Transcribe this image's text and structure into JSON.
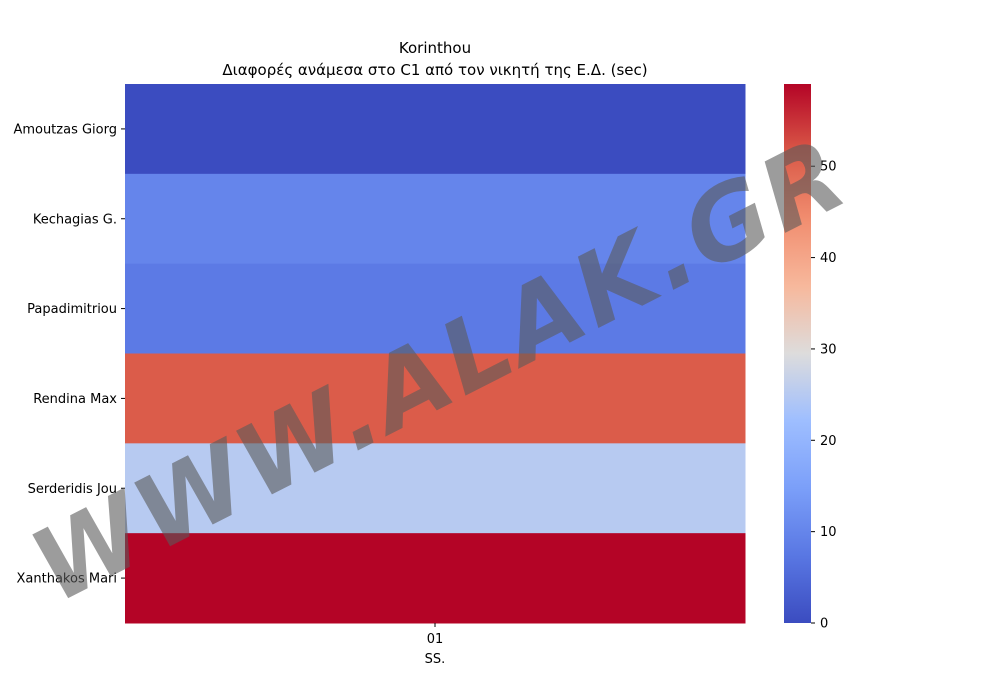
{
  "chart_data": {
    "type": "heatmap",
    "title": "Korinthou",
    "subtitle": "Διαφορές ανάμεσα στο C1 από τον νικητή της Ε.Δ. (sec)",
    "xlabel": "SS.",
    "ylabel": "",
    "x_categories": [
      "01"
    ],
    "y_categories": [
      "Amoutzas Giorg",
      "Kechagias G.  ",
      "Papadimitriou ",
      "Rendina Max  ",
      "Serderidis Jou",
      "Xanthakos Mari"
    ],
    "values": [
      [
        0
      ],
      [
        10
      ],
      [
        8
      ],
      [
        51
      ],
      [
        25
      ],
      [
        59
      ]
    ],
    "colormap": "coolwarm",
    "colorbar": {
      "range": [
        0,
        59
      ],
      "ticks": [
        0,
        10,
        20,
        30,
        40,
        50
      ]
    }
  },
  "watermark": "WWW.ALAK.GR"
}
